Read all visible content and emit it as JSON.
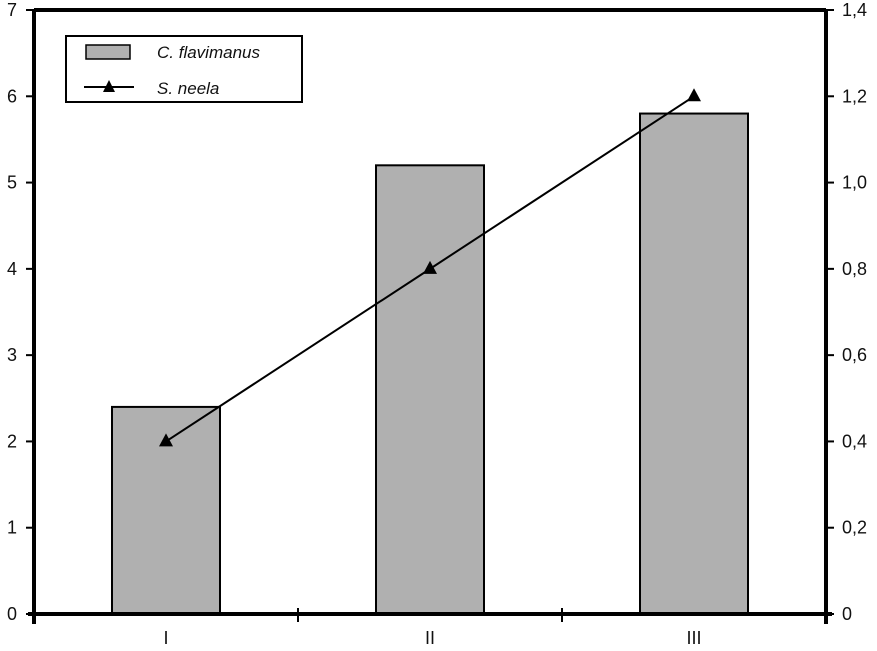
{
  "chart_data": {
    "type": "bar",
    "categories": [
      "I",
      "II",
      "III"
    ],
    "series": [
      {
        "name": "C. flavimanus",
        "type": "bar",
        "axis": "left",
        "values": [
          2.4,
          5.2,
          5.8
        ],
        "color": "#b0b0b0"
      },
      {
        "name": "S. neela",
        "type": "line",
        "axis": "right",
        "values": [
          0.4,
          0.8,
          1.2
        ],
        "color": "#000000",
        "marker": "triangle"
      }
    ],
    "y_left": {
      "min": 0,
      "max": 7,
      "ticks": [
        "0",
        "1",
        "2",
        "3",
        "4",
        "5",
        "6",
        "7"
      ]
    },
    "y_right": {
      "min": 0,
      "max": 1.4,
      "ticks": [
        "0",
        "0,2",
        "0,4",
        "0,6",
        "0,8",
        "1,0",
        "1,2",
        "1,4"
      ]
    },
    "legend": {
      "position": "top-left"
    },
    "grid": false,
    "title": "",
    "xlabel": "",
    "ylabel": ""
  }
}
